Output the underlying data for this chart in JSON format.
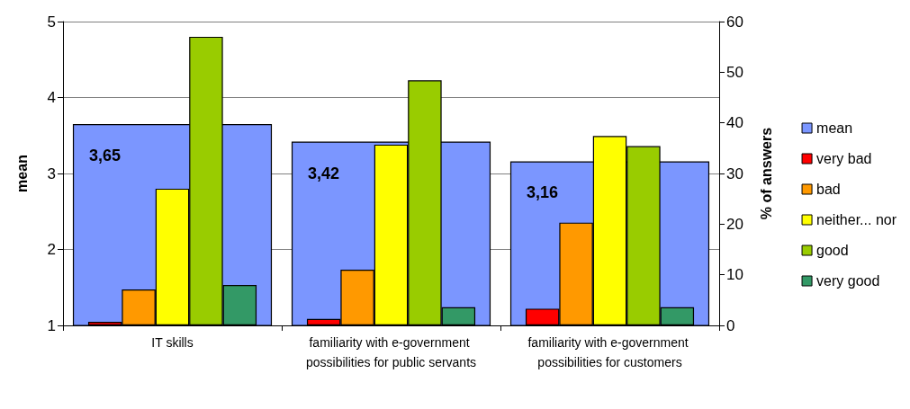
{
  "chart_data": {
    "type": "bar",
    "categories": [
      "IT skills",
      "familiarity with e-government possibilities for public servants",
      "familiarity with e-government possibilities for customers"
    ],
    "ylabel": "mean",
    "y2label": "% of answers",
    "ylim": [
      1,
      5
    ],
    "yticks": [
      1,
      2,
      3,
      4,
      5
    ],
    "y2lim": [
      0,
      60
    ],
    "y2ticks": [
      0,
      10,
      20,
      30,
      40,
      50,
      60
    ],
    "grid": "y",
    "legend": "right",
    "series": [
      {
        "name": "mean",
        "color": "#7b96ff",
        "values": [
          3.65,
          3.42,
          3.16
        ],
        "value_labels": [
          "3,65",
          "3,42",
          "3,16"
        ]
      },
      {
        "name": "very bad",
        "color": "#ff0000",
        "axis": "y2",
        "values": [
          0.7,
          1.3,
          3.3
        ]
      },
      {
        "name": "bad",
        "color": "#ff9900",
        "axis": "y2",
        "values": [
          7.1,
          11.0,
          20.3
        ]
      },
      {
        "name": "neither... nor",
        "color": "#ffff00",
        "axis": "y2",
        "values": [
          27.0,
          35.7,
          37.4
        ]
      },
      {
        "name": "good",
        "color": "#99cc00",
        "axis": "y2",
        "values": [
          57.0,
          48.4,
          35.4
        ]
      },
      {
        "name": "very good",
        "color": "#339966",
        "axis": "y2",
        "values": [
          8.0,
          3.6,
          3.6
        ]
      }
    ]
  }
}
